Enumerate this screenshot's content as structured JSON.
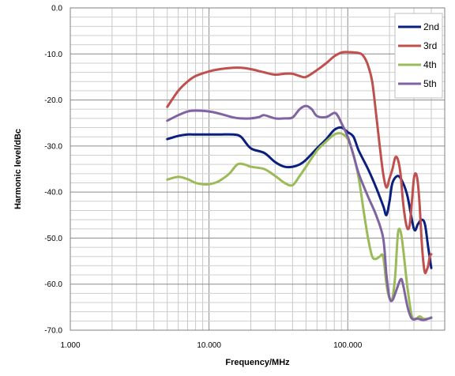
{
  "chart_data": {
    "type": "line",
    "title": "",
    "xlabel": "Frequency/MHz",
    "ylabel": "Harmonic level/dBc",
    "x_scale": "log",
    "xlim": [
      1,
      500
    ],
    "ylim": [
      -70,
      0
    ],
    "x_tick_labels": [
      "1.000",
      "10.000",
      "100.000"
    ],
    "y_tick_labels": [
      "0.0",
      "-10.0",
      "-20.0",
      "-30.0",
      "-40.0",
      "-50.0",
      "-60.0",
      "-70.0"
    ],
    "grid": true,
    "legend_position": "top-right",
    "series": [
      {
        "name": "2nd",
        "color": "#0b1f7f",
        "points": [
          [
            5,
            -28.5
          ],
          [
            6,
            -27.8
          ],
          [
            7,
            -27.5
          ],
          [
            8,
            -27.5
          ],
          [
            10,
            -27.5
          ],
          [
            12,
            -27.5
          ],
          [
            15,
            -27.5
          ],
          [
            17,
            -28
          ],
          [
            20,
            -30.5
          ],
          [
            25,
            -31.5
          ],
          [
            30,
            -33.5
          ],
          [
            35,
            -34.5
          ],
          [
            40,
            -34.5
          ],
          [
            45,
            -34
          ],
          [
            50,
            -33
          ],
          [
            60,
            -30.5
          ],
          [
            70,
            -28.5
          ],
          [
            80,
            -26.5
          ],
          [
            90,
            -26
          ],
          [
            100,
            -27
          ],
          [
            110,
            -28
          ],
          [
            120,
            -31
          ],
          [
            140,
            -35
          ],
          [
            160,
            -39
          ],
          [
            180,
            -43
          ],
          [
            190,
            -45
          ],
          [
            200,
            -42
          ],
          [
            210,
            -38
          ],
          [
            230,
            -36.5
          ],
          [
            250,
            -38
          ],
          [
            270,
            -41
          ],
          [
            300,
            -48
          ],
          [
            320,
            -47
          ],
          [
            340,
            -46
          ],
          [
            360,
            -47
          ],
          [
            380,
            -52
          ],
          [
            400,
            -56.5
          ]
        ]
      },
      {
        "name": "3rd",
        "color": "#c0504d",
        "points": [
          [
            5,
            -21.5
          ],
          [
            6,
            -18
          ],
          [
            7,
            -16
          ],
          [
            8,
            -14.8
          ],
          [
            10,
            -13.8
          ],
          [
            12,
            -13.3
          ],
          [
            15,
            -13
          ],
          [
            17,
            -13
          ],
          [
            20,
            -13.3
          ],
          [
            25,
            -14
          ],
          [
            30,
            -14.5
          ],
          [
            35,
            -14.3
          ],
          [
            40,
            -14.3
          ],
          [
            45,
            -14.8
          ],
          [
            50,
            -15
          ],
          [
            60,
            -13.5
          ],
          [
            70,
            -12
          ],
          [
            80,
            -10.5
          ],
          [
            90,
            -9.7
          ],
          [
            100,
            -9.6
          ],
          [
            120,
            -9.8
          ],
          [
            130,
            -10.5
          ],
          [
            140,
            -12.5
          ],
          [
            150,
            -16
          ],
          [
            160,
            -23
          ],
          [
            170,
            -30
          ],
          [
            180,
            -36
          ],
          [
            190,
            -39
          ],
          [
            200,
            -37
          ],
          [
            210,
            -35
          ],
          [
            220,
            -32.5
          ],
          [
            230,
            -33
          ],
          [
            240,
            -36
          ],
          [
            250,
            -42
          ],
          [
            260,
            -46
          ],
          [
            270,
            -48
          ],
          [
            280,
            -47
          ],
          [
            290,
            -42
          ],
          [
            300,
            -37
          ],
          [
            310,
            -36
          ],
          [
            320,
            -38
          ],
          [
            330,
            -43
          ],
          [
            340,
            -50
          ],
          [
            350,
            -55
          ],
          [
            360,
            -57.5
          ],
          [
            370,
            -57
          ],
          [
            380,
            -56
          ],
          [
            390,
            -54
          ],
          [
            400,
            -53.5
          ]
        ]
      },
      {
        "name": "4th",
        "color": "#9bbb59",
        "points": [
          [
            5,
            -37.3
          ],
          [
            6,
            -36.7
          ],
          [
            7,
            -37.2
          ],
          [
            8,
            -38
          ],
          [
            9,
            -38.3
          ],
          [
            10,
            -38.3
          ],
          [
            11,
            -38
          ],
          [
            12,
            -37.5
          ],
          [
            14,
            -36
          ],
          [
            16,
            -34
          ],
          [
            18,
            -34
          ],
          [
            20,
            -34.5
          ],
          [
            25,
            -35
          ],
          [
            30,
            -36.5
          ],
          [
            35,
            -38
          ],
          [
            40,
            -38.5
          ],
          [
            45,
            -36.5
          ],
          [
            50,
            -34.5
          ],
          [
            60,
            -31
          ],
          [
            70,
            -29
          ],
          [
            80,
            -27.5
          ],
          [
            90,
            -27.3
          ],
          [
            100,
            -28.5
          ],
          [
            110,
            -32
          ],
          [
            120,
            -37
          ],
          [
            130,
            -44
          ],
          [
            140,
            -50
          ],
          [
            150,
            -54
          ],
          [
            160,
            -54.5
          ],
          [
            170,
            -54
          ],
          [
            180,
            -54
          ],
          [
            190,
            -60
          ],
          [
            200,
            -63
          ],
          [
            210,
            -63
          ],
          [
            220,
            -58
          ],
          [
            230,
            -49
          ],
          [
            240,
            -48.5
          ],
          [
            250,
            -52
          ],
          [
            270,
            -61
          ],
          [
            290,
            -67
          ],
          [
            310,
            -67.5
          ],
          [
            330,
            -67
          ],
          [
            350,
            -67.5
          ],
          [
            380,
            -67.5
          ],
          [
            400,
            -67.2
          ]
        ]
      },
      {
        "name": "5th",
        "color": "#8064a2",
        "points": [
          [
            5,
            -24.5
          ],
          [
            6,
            -23.3
          ],
          [
            7,
            -22.5
          ],
          [
            8,
            -22.3
          ],
          [
            10,
            -22.5
          ],
          [
            12,
            -23
          ],
          [
            15,
            -23.8
          ],
          [
            17,
            -24
          ],
          [
            20,
            -24
          ],
          [
            23,
            -23.7
          ],
          [
            25,
            -23.3
          ],
          [
            30,
            -24
          ],
          [
            35,
            -24
          ],
          [
            40,
            -23.8
          ],
          [
            45,
            -22
          ],
          [
            50,
            -21.3
          ],
          [
            55,
            -22
          ],
          [
            60,
            -23.5
          ],
          [
            70,
            -23.7
          ],
          [
            80,
            -22.8
          ],
          [
            85,
            -23.5
          ],
          [
            90,
            -25
          ],
          [
            100,
            -28
          ],
          [
            110,
            -32
          ],
          [
            120,
            -36
          ],
          [
            140,
            -41
          ],
          [
            160,
            -45
          ],
          [
            180,
            -50
          ],
          [
            190,
            -58
          ],
          [
            200,
            -63
          ],
          [
            210,
            -63.5
          ],
          [
            220,
            -62
          ],
          [
            240,
            -59
          ],
          [
            250,
            -60
          ],
          [
            270,
            -65
          ],
          [
            290,
            -67.5
          ],
          [
            320,
            -67.5
          ],
          [
            350,
            -67.8
          ],
          [
            380,
            -67.5
          ],
          [
            400,
            -67.3
          ]
        ]
      }
    ]
  }
}
